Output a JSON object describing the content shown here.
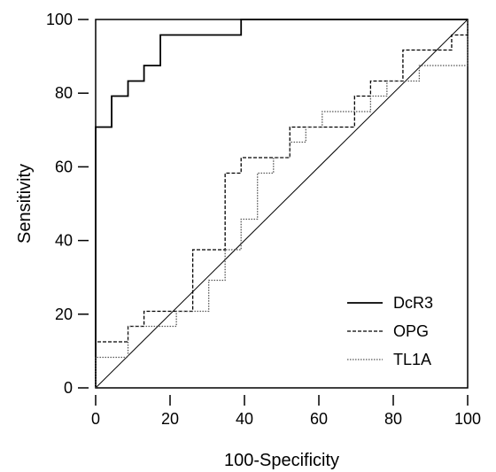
{
  "chart_data": {
    "type": "line",
    "title": "",
    "xlabel": "100-Specificity",
    "ylabel": "Sensitivity",
    "xlim": [
      0,
      100
    ],
    "ylim": [
      0,
      100
    ],
    "xticks": [
      0,
      20,
      40,
      60,
      80,
      100
    ],
    "yticks": [
      0,
      20,
      40,
      60,
      80,
      100
    ],
    "xtick_labels": [
      "0",
      "20",
      "40",
      "60",
      "80",
      "100"
    ],
    "ytick_labels": [
      "0",
      "20",
      "40",
      "60",
      "80",
      "100"
    ],
    "grid": false,
    "legend_position": "bottom-right",
    "reference_line": {
      "x": [
        0,
        100
      ],
      "y": [
        0,
        100
      ]
    },
    "series": [
      {
        "name": "DcR3",
        "style": "solid",
        "color": "#000000",
        "x": [
          0,
          0,
          4.3,
          4.3,
          8.7,
          8.7,
          13,
          13,
          17.4,
          17.4,
          39.1,
          39.1,
          100
        ],
        "y": [
          0,
          70.8,
          70.8,
          79.2,
          79.2,
          83.3,
          83.3,
          87.5,
          87.5,
          95.8,
          95.8,
          100,
          100
        ]
      },
      {
        "name": "OPG",
        "style": "dashed",
        "color": "#000000",
        "x": [
          0,
          0,
          8.7,
          8.7,
          13,
          13,
          26.1,
          26.1,
          34.8,
          34.8,
          39.1,
          39.1,
          52.2,
          52.2,
          69.6,
          69.6,
          73.9,
          73.9,
          82.6,
          82.6,
          95.7,
          95.7,
          100,
          100
        ],
        "y": [
          0,
          12.5,
          12.5,
          16.7,
          16.7,
          20.8,
          20.8,
          37.5,
          37.5,
          58.3,
          58.3,
          62.5,
          62.5,
          70.8,
          70.8,
          79.2,
          79.2,
          83.3,
          83.3,
          91.7,
          91.7,
          95.8,
          95.8,
          100
        ]
      },
      {
        "name": "TL1A",
        "style": "dotted",
        "color": "#555555",
        "x": [
          0,
          0,
          8.7,
          8.7,
          21.7,
          21.7,
          30.4,
          30.4,
          34.8,
          34.8,
          39.1,
          39.1,
          43.5,
          43.5,
          47.8,
          47.8,
          52.2,
          52.2,
          56.5,
          56.5,
          60.9,
          60.9,
          73.9,
          73.9,
          78.3,
          78.3,
          87,
          87,
          100,
          100
        ],
        "y": [
          0,
          8.3,
          8.3,
          16.7,
          16.7,
          20.8,
          20.8,
          29.2,
          29.2,
          37.5,
          37.5,
          45.8,
          45.8,
          58.3,
          58.3,
          62.5,
          62.5,
          66.7,
          66.7,
          70.8,
          70.8,
          75,
          75,
          79.2,
          79.2,
          83.3,
          83.3,
          87.5,
          87.5,
          100
        ]
      }
    ]
  }
}
